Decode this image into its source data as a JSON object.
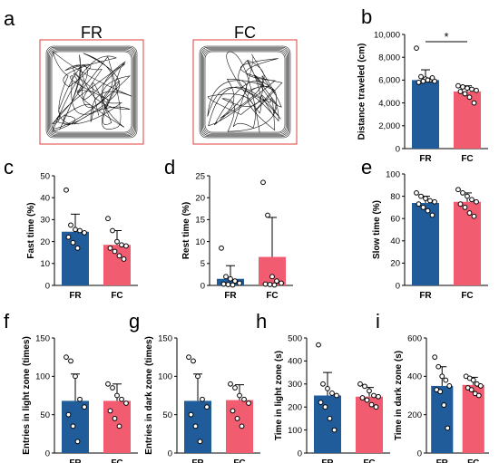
{
  "colors": {
    "FR": "#1f5c99",
    "FC": "#f25c70",
    "axis": "#000000",
    "arena_border": "#e03c3c"
  },
  "panel_a": {
    "letter": "a",
    "arenas": [
      {
        "label": "FR"
      },
      {
        "label": "FC"
      }
    ]
  },
  "chart_data": [
    {
      "letter": "b",
      "type": "bar",
      "categories": [
        "FR",
        "FC"
      ],
      "ylabel": "Distance traveled (cm)",
      "ylim": [
        0,
        10000
      ],
      "yticks": [
        0,
        2000,
        4000,
        6000,
        8000,
        10000
      ],
      "ytick_labels": [
        "0",
        "2,000",
        "4,000",
        "6,000",
        "8,000",
        "10,000"
      ],
      "values": [
        6000,
        5000
      ],
      "errors": [
        900,
        500
      ],
      "points": [
        [
          8800,
          6300,
          6100,
          6000,
          5900,
          5800,
          5900,
          6000,
          6200
        ],
        [
          5500,
          5400,
          5300,
          5200,
          5100,
          5000,
          4800,
          4500,
          4000
        ]
      ],
      "significance": "*"
    },
    {
      "letter": "c",
      "type": "bar",
      "categories": [
        "FR",
        "FC"
      ],
      "ylabel": "Fast time (%)",
      "ylim": [
        0,
        50
      ],
      "yticks": [
        0,
        10,
        20,
        30,
        40,
        50
      ],
      "ytick_labels": [
        "0",
        "10",
        "20",
        "30",
        "40",
        "50"
      ],
      "values": [
        24.5,
        18.5
      ],
      "errors": [
        8,
        6.5
      ],
      "points": [
        [
          43.5,
          27.5,
          25.5,
          25,
          24,
          22,
          19.5,
          17
        ],
        [
          30.5,
          25,
          20,
          18.5,
          18,
          17,
          15.5,
          13.5,
          12
        ]
      ]
    },
    {
      "letter": "d",
      "type": "bar",
      "categories": [
        "FR",
        "FC"
      ],
      "ylabel": "Rest time (%)",
      "ylim": [
        0,
        25
      ],
      "yticks": [
        0,
        5,
        10,
        15,
        20,
        25
      ],
      "ytick_labels": [
        "0",
        "5",
        "10",
        "15",
        "20",
        "25"
      ],
      "values": [
        1.5,
        6.5
      ],
      "errors": [
        3,
        9
      ],
      "points": [
        [
          8.5,
          2,
          1.5,
          1,
          0.5,
          0.3,
          0.2,
          0.1
        ],
        [
          23.5,
          16,
          2,
          1,
          0.5,
          0.3,
          0.2,
          0.1
        ]
      ]
    },
    {
      "letter": "e",
      "type": "bar",
      "categories": [
        "FR",
        "FC"
      ],
      "ylabel": "Slow time (%)",
      "ylim": [
        0,
        100
      ],
      "yticks": [
        0,
        20,
        40,
        60,
        80,
        100
      ],
      "ytick_labels": [
        "0",
        "20",
        "40",
        "60",
        "80",
        "100"
      ],
      "values": [
        74,
        75
      ],
      "errors": [
        6,
        8
      ],
      "points": [
        [
          83,
          80,
          78,
          76,
          75,
          73,
          70,
          67,
          63
        ],
        [
          86,
          83,
          80,
          77,
          75,
          73,
          70,
          65,
          62
        ]
      ]
    },
    {
      "letter": "f",
      "type": "bar",
      "categories": [
        "FR",
        "FC"
      ],
      "ylabel": "Entries in light zone (times)",
      "ylim": [
        0,
        150
      ],
      "yticks": [
        0,
        50,
        100,
        150
      ],
      "ytick_labels": [
        "0",
        "50",
        "100",
        "150"
      ],
      "values": [
        68,
        68
      ],
      "errors": [
        35,
        22
      ],
      "points": [
        [
          125,
          120,
          100,
          70,
          60,
          50,
          35,
          15
        ],
        [
          90,
          85,
          75,
          70,
          65,
          55,
          45,
          35
        ]
      ]
    },
    {
      "letter": "g",
      "type": "bar",
      "categories": [
        "FR",
        "FC"
      ],
      "ylabel": "Entries in dark zone (times)",
      "ylim": [
        0,
        150
      ],
      "yticks": [
        0,
        50,
        100,
        150
      ],
      "ytick_labels": [
        "0",
        "50",
        "100",
        "150"
      ],
      "values": [
        68,
        69
      ],
      "errors": [
        35,
        20
      ],
      "points": [
        [
          125,
          120,
          100,
          70,
          60,
          50,
          35,
          15
        ],
        [
          90,
          85,
          75,
          70,
          65,
          55,
          45,
          35
        ]
      ]
    },
    {
      "letter": "h",
      "type": "bar",
      "categories": [
        "FR",
        "FC"
      ],
      "ylabel": "Time in light zone (s)",
      "ylim": [
        0,
        500
      ],
      "yticks": [
        0,
        100,
        200,
        300,
        400,
        500
      ],
      "ytick_labels": [
        "0",
        "100",
        "200",
        "300",
        "400",
        "500"
      ],
      "values": [
        250,
        245
      ],
      "errors": [
        100,
        40
      ],
      "points": [
        [
          470,
          300,
          280,
          260,
          250,
          220,
          200,
          150,
          100
        ],
        [
          300,
          290,
          270,
          250,
          245,
          240,
          230,
          210,
          200
        ]
      ]
    },
    {
      "letter": "i",
      "type": "bar",
      "categories": [
        "FR",
        "FC"
      ],
      "ylabel": "Time in dark zone (s)",
      "ylim": [
        0,
        600
      ],
      "yticks": [
        0,
        200,
        400,
        600
      ],
      "ytick_labels": [
        "0",
        "200",
        "400",
        "600"
      ],
      "values": [
        350,
        355
      ],
      "errors": [
        100,
        40
      ],
      "points": [
        [
          500,
          450,
          400,
          380,
          350,
          330,
          320,
          250,
          130
        ],
        [
          400,
          390,
          380,
          360,
          350,
          340,
          330,
          310,
          300
        ]
      ]
    }
  ]
}
